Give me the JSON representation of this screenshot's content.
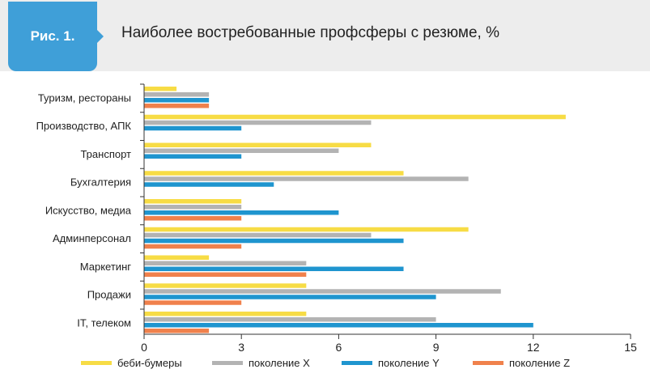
{
  "header": {
    "figure_label": "Рис. 1."
  },
  "chart_data": {
    "type": "bar",
    "orientation": "horizontal",
    "title": "Наиболее востребованные профсферы с резюме, %",
    "xlabel": "",
    "ylabel": "",
    "xlim": [
      0,
      15
    ],
    "xticks": [
      0,
      3,
      6,
      9,
      12,
      15
    ],
    "grid": false,
    "legend_position": "bottom",
    "categories": [
      "Туризм, рестораны",
      "Производство, АПК",
      "Транспорт",
      "Бухгалтерия",
      "Искусство, медиа",
      "Админперсонал",
      "Маркетинг",
      "Продажи",
      "IT, телеком"
    ],
    "series": [
      {
        "name": "беби-бумеры",
        "color": "#f7dc45",
        "values": [
          1,
          13,
          7,
          8,
          3,
          10,
          2,
          5,
          5
        ]
      },
      {
        "name": "поколение X",
        "color": "#b3b3b3",
        "values": [
          2,
          7,
          6,
          10,
          3,
          7,
          5,
          11,
          9
        ]
      },
      {
        "name": "поколение Y",
        "color": "#1f95cf",
        "values": [
          2,
          3,
          3,
          4,
          6,
          8,
          8,
          9,
          12
        ]
      },
      {
        "name": "поколение Z",
        "color": "#f0814c",
        "values": [
          2,
          0,
          0,
          0,
          3,
          3,
          5,
          3,
          2
        ]
      }
    ]
  }
}
